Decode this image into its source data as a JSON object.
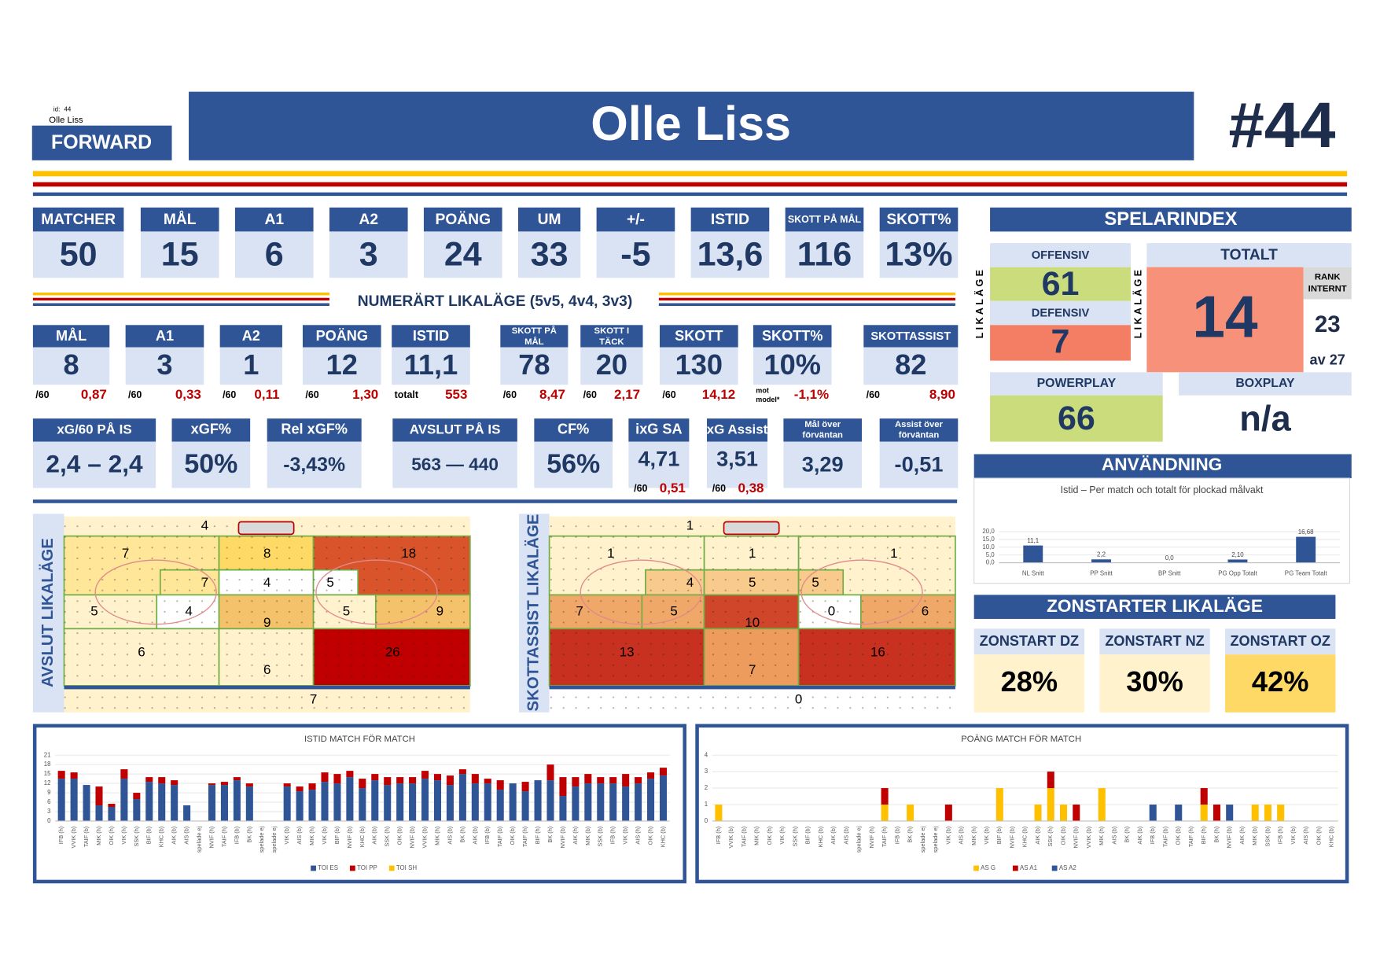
{
  "header": {
    "id_label": "id:",
    "id": "44",
    "player": "Olle Liss",
    "position": "FORWARD",
    "name": "Olle Liss",
    "number": "#44"
  },
  "stats_row1": [
    {
      "label": "MATCHER",
      "value": "50"
    },
    {
      "label": "MÅL",
      "value": "15"
    },
    {
      "label": "A1",
      "value": "6"
    },
    {
      "label": "A2",
      "value": "3"
    },
    {
      "label": "POÄNG",
      "value": "24"
    },
    {
      "label": "UM",
      "value": "33"
    },
    {
      "label": "+/-",
      "value": "-5"
    },
    {
      "label": "ISTID",
      "value": "13,6"
    },
    {
      "label": "SKOTT PÅ MÅL",
      "value": "116"
    },
    {
      "label": "SKOTT%",
      "value": "13%"
    }
  ],
  "section_title": "NUMERÄRT LIKALÄGE (5v5, 4v4, 3v3)",
  "stats_row2": [
    {
      "label": "MÅL",
      "value": "8",
      "sub_label": "/60",
      "sub_value": "0,87"
    },
    {
      "label": "A1",
      "value": "3",
      "sub_label": "/60",
      "sub_value": "0,33"
    },
    {
      "label": "A2",
      "value": "1",
      "sub_label": "/60",
      "sub_value": "0,11"
    },
    {
      "label": "POÄNG",
      "value": "12",
      "sub_label": "/60",
      "sub_value": "1,30"
    },
    {
      "label": "ISTID",
      "value": "11,1",
      "sub_label": "totalt",
      "sub_value": "553"
    },
    {
      "label": [
        "SKOTT PÅ",
        "MÅL"
      ],
      "value": "78",
      "sub_label": "/60",
      "sub_value": "8,47"
    },
    {
      "label": [
        "SKOTT I",
        "TÄCK"
      ],
      "value": "20",
      "sub_label": "/60",
      "sub_value": "2,17"
    },
    {
      "label": "SKOTT",
      "value": "130",
      "sub_label": "/60",
      "sub_value": "14,12"
    },
    {
      "label": "SKOTT%",
      "value": "10%",
      "sub_label": [
        "mot",
        "model*"
      ],
      "sub_value": "-1,1%"
    },
    {
      "label": "SKOTTASSIST",
      "value": "82",
      "sub_label": "/60",
      "sub_value": "8,90"
    }
  ],
  "stats_row3": [
    {
      "label": "xG/60 PÅ IS",
      "value": "2,4 – 2,4"
    },
    {
      "label": "xGF%",
      "value": "50%"
    },
    {
      "label": "Rel xGF%",
      "value": "-3,43%"
    },
    {
      "label": "AVSLUT PÅ IS",
      "value": "563 — 440"
    },
    {
      "label": "CF%",
      "value": "56%"
    },
    {
      "label": "ixG SA",
      "value": "4,71",
      "sub_label": "/60",
      "sub_value": "0,51"
    },
    {
      "label": "xG Assist",
      "value": "3,51",
      "sub_label": "/60",
      "sub_value": "0,38"
    },
    {
      "label": [
        "Mål över",
        "förväntan"
      ],
      "value": "3,29"
    },
    {
      "label": [
        "Assist över",
        "förväntan"
      ],
      "value": "-0,51"
    }
  ],
  "spelarindex": {
    "title": "SPELARINDEX",
    "side_label": "LIKALÄGE",
    "offensiv": {
      "label": "OFFENSIV",
      "value": "61",
      "color": "#cbdc7c"
    },
    "defensiv": {
      "label": "DEFENSIV",
      "value": "7",
      "color": "#f47e63"
    },
    "totalt": {
      "label": "TOTALT",
      "value": "14",
      "color": "#f8917a"
    },
    "rank_label": [
      "RANK",
      "INTERNT"
    ],
    "rank": "23",
    "rank_of": "av 27",
    "powerplay": {
      "label": "POWERPLAY",
      "value": "66",
      "color": "#cbdc7c"
    },
    "boxplay": {
      "label": "BOXPLAY",
      "value": "n/a"
    }
  },
  "anvandning_title": "ANVÄNDNING",
  "zonstarter": {
    "title": "ZONSTARTER LIKALÄGE",
    "items": [
      {
        "label": "ZONSTART DZ",
        "value": "28%",
        "color": "#fff2cc"
      },
      {
        "label": "ZONSTART NZ",
        "value": "30%",
        "color": "#fff2cc"
      },
      {
        "label": "ZONSTART OZ",
        "value": "42%",
        "color": "#ffd966"
      }
    ]
  },
  "rinks": [
    {
      "title": "AVSLUT LIKALÄGE",
      "zones": [
        {
          "value": 4,
          "color": "#fff2cc"
        },
        {
          "value": 7,
          "color": "#ffe699"
        },
        {
          "value": 8,
          "color": "#ffd966"
        },
        {
          "value": 18,
          "color": "#d9542b"
        },
        {
          "value": 7,
          "color": "#ffe699"
        },
        {
          "value": 4,
          "color": "#ffffff"
        },
        {
          "value": 5,
          "color": "#ffffff"
        },
        {
          "value": 5,
          "color": "#fff2cc"
        },
        {
          "value": 4,
          "color": "#ffffff"
        },
        {
          "value": 9,
          "color": "#f4c26b"
        },
        {
          "value": 5,
          "color": "#fff2cc"
        },
        {
          "value": 9,
          "color": "#f4c26b"
        },
        {
          "value": 6,
          "color": "#fff2cc"
        },
        {
          "value": 6,
          "color": "#fff2cc"
        },
        {
          "value": 26,
          "color": "#c00000"
        },
        {
          "value": 7,
          "color": "#fff2cc"
        }
      ]
    },
    {
      "title": "SKOTTASSIST LIKALÄGE",
      "zones": [
        {
          "value": 1,
          "color": "#fff2cc"
        },
        {
          "value": 1,
          "color": "#fff2cc"
        },
        {
          "value": 1,
          "color": "#fff2cc"
        },
        {
          "value": 1,
          "color": "#fff2cc"
        },
        {
          "value": 4,
          "color": "#f8cb8c"
        },
        {
          "value": 5,
          "color": "#f8cb8c"
        },
        {
          "value": 5,
          "color": "#f8cb8c"
        },
        {
          "value": 7,
          "color": "#f0a868"
        },
        {
          "value": 5,
          "color": "#f0a868"
        },
        {
          "value": 10,
          "color": "#d0462a"
        },
        {
          "value": 0,
          "color": "#ffffff"
        },
        {
          "value": 6,
          "color": "#f0a868"
        },
        {
          "value": 13,
          "color": "#c8301f"
        },
        {
          "value": 7,
          "color": "#ee9c5e"
        },
        {
          "value": 16,
          "color": "#c8301f"
        },
        {
          "value": 0,
          "color": "#ffffff"
        }
      ]
    }
  ],
  "chart_data": [
    {
      "type": "bar",
      "title": "Istid – Per match och totalt för plockad målvakt",
      "categories": [
        "NL Snitt",
        "PP Snitt",
        "BP Snitt",
        "PG Opp Totalt",
        "PG Team Totalt"
      ],
      "values": [
        11.1,
        2.2,
        0,
        2.1,
        16.68
      ],
      "value_labels": [
        "11,1",
        "2,2",
        "0,0",
        "2,10",
        "16,68"
      ],
      "color": "#2f5597",
      "ylim": [
        0,
        20
      ],
      "yticks": [
        {
          "value": 0,
          "label": "0,0"
        },
        {
          "value": 5,
          "label": "5,0"
        },
        {
          "value": 10,
          "label": "10,0"
        },
        {
          "value": 15,
          "label": "15,0"
        },
        {
          "value": 20,
          "label": "20,0"
        }
      ]
    },
    {
      "type": "stacked_bar",
      "title": "ISTID MATCH FÖR MATCH",
      "categories": [
        "IFB (h)",
        "VVIK (b)",
        "TAIF (b)",
        "MIK (h)",
        "OIK (h)",
        "VIK (h)",
        "SSK (h)",
        "BIF (b)",
        "KHC (b)",
        "AIK (b)",
        "AIS (b)",
        "spelade ej",
        "NVIF (h)",
        "TAIF (h)",
        "IFB (b)",
        "BK (h)",
        "spelade ej",
        "spelade ej",
        "VIK (b)",
        "AIS (b)",
        "MIK (h)",
        "VIK (b)",
        "BIF (b)",
        "NVIF (b)",
        "KHC (b)",
        "AIK (b)",
        "SSK (h)",
        "OIK (b)",
        "NVIF (b)",
        "VVIK (b)",
        "MIK (h)",
        "AIS (b)",
        "BK (h)",
        "AIK (b)",
        "IFB (b)",
        "TAIF (b)",
        "OIK (b)",
        "TAIF (h)",
        "BIF (h)",
        "BK (h)",
        "NVIF (b)",
        "AIK (h)",
        "MIK (b)",
        "SSK (b)",
        "IFB (h)",
        "VIK (b)",
        "AIS (h)",
        "OIK (h)",
        "KHC (b)"
      ],
      "series": [
        {
          "name": "TOI ES",
          "color": "#2f5597",
          "values": [
            13.5,
            13.5,
            11.5,
            5,
            4.5,
            13.5,
            7,
            12.5,
            12,
            11.5,
            5,
            0,
            11.5,
            11.5,
            13,
            11,
            0,
            0,
            11,
            9.5,
            10,
            12.5,
            12,
            14,
            10.5,
            13,
            11.5,
            12,
            12,
            13.5,
            13,
            11.5,
            15,
            12,
            12,
            10,
            12,
            9.5,
            13,
            13,
            8,
            11,
            12,
            12,
            12,
            11,
            12,
            13.5,
            14.5
          ]
        },
        {
          "name": "TOI PP",
          "color": "#c00000",
          "values": [
            2.5,
            2,
            0,
            6,
            1,
            3,
            2,
            1.5,
            2,
            1.5,
            0,
            0,
            0.5,
            1,
            1,
            1,
            0,
            0,
            1,
            1.5,
            2,
            3,
            3,
            2,
            3,
            2,
            2.5,
            2,
            2,
            2.5,
            2,
            3,
            1.5,
            3,
            1.5,
            3,
            0,
            3,
            0,
            5,
            6,
            3,
            3,
            2,
            2,
            4,
            2,
            2,
            2.5
          ]
        },
        {
          "name": "TOI SH",
          "color": "#ffc000",
          "values": [
            0,
            0,
            0,
            0,
            0,
            0,
            0,
            0,
            0,
            0,
            0,
            0,
            0,
            0,
            0,
            0,
            0,
            0,
            0,
            0,
            0,
            0,
            0,
            0,
            0,
            0,
            0,
            0,
            0,
            0,
            0,
            0,
            0,
            0,
            0,
            0,
            0,
            0,
            0,
            0,
            0,
            0,
            0,
            0,
            0,
            0,
            0,
            0,
            0
          ]
        }
      ],
      "ylim": [
        0,
        21
      ],
      "yticks": [
        0,
        3,
        6,
        9,
        12,
        15,
        18,
        21
      ],
      "grid": true
    },
    {
      "type": "stacked_bar",
      "title": "POÄNG MATCH FÖR MATCH",
      "categories": [
        "IFB (h)",
        "VVIK (b)",
        "TAIF (b)",
        "MIK (h)",
        "OIK (h)",
        "VIK (h)",
        "SSK (h)",
        "BIF (b)",
        "KHC (b)",
        "AIK (b)",
        "AIS (b)",
        "spelade ej",
        "NVIF (h)",
        "TAIF (h)",
        "IFB (b)",
        "BK (h)",
        "spelade ej",
        "spelade ej",
        "VIK (b)",
        "AIS (b)",
        "MIK (h)",
        "VIK (b)",
        "BIF (b)",
        "NVIF (b)",
        "KHC (b)",
        "AIK (b)",
        "SSK (h)",
        "OIK (b)",
        "NVIF (b)",
        "VVIK (b)",
        "MIK (h)",
        "AIS (b)",
        "BK (h)",
        "AIK (b)",
        "IFB (b)",
        "TAIF (b)",
        "OIK (b)",
        "TAIF (h)",
        "BIF (h)",
        "BK (h)",
        "NVIF (b)",
        "AIK (h)",
        "MIK (b)",
        "SSK (b)",
        "IFB (h)",
        "VIK (b)",
        "AIS (h)",
        "OIK (h)",
        "KHC (b)"
      ],
      "series": [
        {
          "name": "AS G",
          "color": "#ffc000",
          "values": [
            1,
            0,
            0,
            0,
            0,
            0,
            0,
            0,
            0,
            0,
            0,
            0,
            0,
            1,
            0,
            1,
            0,
            0,
            0,
            0,
            0,
            0,
            2,
            0,
            0,
            1,
            2,
            1,
            0,
            0,
            2,
            0,
            0,
            0,
            0,
            0,
            0,
            0,
            1,
            0,
            0,
            0,
            1,
            1,
            1,
            0,
            0,
            0,
            0
          ]
        },
        {
          "name": "AS A1",
          "color": "#c00000",
          "values": [
            0,
            0,
            0,
            0,
            0,
            0,
            0,
            0,
            0,
            0,
            0,
            0,
            0,
            1,
            0,
            0,
            0,
            0,
            1,
            0,
            0,
            0,
            0,
            0,
            0,
            0,
            1,
            0,
            1,
            0,
            0,
            0,
            0,
            0,
            0,
            0,
            0,
            0,
            1,
            1,
            0,
            0,
            0,
            0,
            0,
            0,
            0,
            0,
            0
          ]
        },
        {
          "name": "AS A2",
          "color": "#2f5597",
          "values": [
            0,
            0,
            0,
            0,
            0,
            0,
            0,
            0,
            0,
            0,
            0,
            0,
            0,
            0,
            0,
            0,
            0,
            0,
            0,
            0,
            0,
            0,
            0,
            0,
            0,
            0,
            0,
            0,
            0,
            0,
            0,
            0,
            0,
            0,
            1,
            0,
            1,
            0,
            0,
            0,
            1,
            0,
            0,
            0,
            0,
            0,
            0,
            0,
            0
          ]
        }
      ],
      "ylim": [
        0,
        4
      ],
      "yticks": [
        0,
        1,
        2,
        3,
        4
      ],
      "grid": true
    }
  ]
}
